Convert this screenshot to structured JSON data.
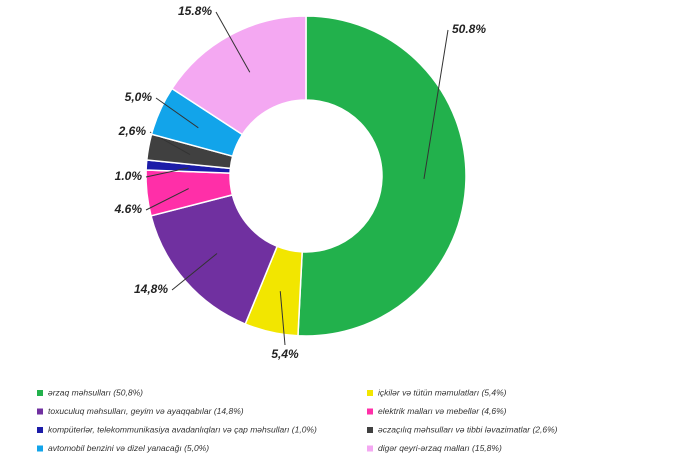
{
  "chart_data": {
    "type": "pie",
    "categories": [
      "ərzaq məhsulları (50,8%)",
      "içkilər və tütün məmulatları (5,4%)",
      "toxuculuq məhsulları, geyim və ayaqqabılar (14,8%)",
      "elektrik malları və mebellər (4,6%)",
      "kompüterlər, telekommunikasiya avadanlıqları və çap məhsulları (1,0%)",
      "əczaçılıq məhsulları və tibbi ləvazimatlar (2,6%)",
      "avtomobil benzini və dizel yanacağı (5,0%)",
      "digər qeyri-ərzaq malları (15,8%)"
    ],
    "values": [
      50.8,
      5.4,
      14.8,
      4.6,
      1.0,
      2.6,
      5.0,
      15.8
    ],
    "value_labels": [
      "50.8%",
      "5,4%",
      "14,8%",
      "4.6%",
      "1.0%",
      "2,6%",
      "5,0%",
      "15.8%"
    ],
    "colors": [
      "#22b14c",
      "#f2e600",
      "#7030a0",
      "#ff2fa8",
      "#1c1ca8",
      "#404040",
      "#12a4ea",
      "#f4a8f2"
    ],
    "donut": true
  }
}
